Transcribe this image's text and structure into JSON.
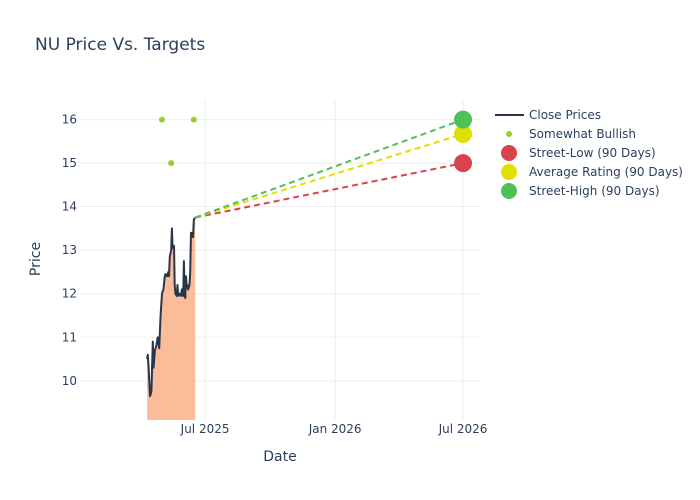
{
  "chart_data": {
    "type": "line",
    "title": "NU Price Vs. Targets",
    "xlabel": "Date",
    "ylabel": "Price",
    "x_type": "date",
    "xlim": [
      "2025-01-05",
      "2026-07-25"
    ],
    "ylim": [
      9.1,
      16.45
    ],
    "x_ticks": [
      {
        "date": "2025-07-01",
        "label": "Jul 2025"
      },
      {
        "date": "2026-01-01",
        "label": "Jan 2026"
      },
      {
        "date": "2026-07-01",
        "label": "Jul 2026"
      }
    ],
    "y_ticks": [
      10,
      11,
      12,
      13,
      14,
      15,
      16
    ],
    "grid": true,
    "legend_position": "right",
    "colors": {
      "close": "#2a3547",
      "area_fill": "#fbbc99",
      "bullish": "#9acd32",
      "low": "#d9434b",
      "average": "#e0e000",
      "high": "#4ec157",
      "grid": "#ebedf0"
    },
    "legend": [
      {
        "label": "Close Prices",
        "kind": "line",
        "color": "#2a3547"
      },
      {
        "label": "Somewhat Bullish",
        "kind": "small-dot",
        "color": "#9acd32"
      },
      {
        "label": "Street-Low (90 Days)",
        "kind": "dot",
        "color": "#d9434b"
      },
      {
        "label": "Average Rating (90 Days)",
        "kind": "dot",
        "color": "#e0e000"
      },
      {
        "label": "Street-High (90 Days)",
        "kind": "dot",
        "color": "#4ec157"
      }
    ],
    "close_prices": [
      [
        "2025-04-10",
        10.5
      ],
      [
        "2025-04-11",
        10.6
      ],
      [
        "2025-04-12",
        10.3
      ],
      [
        "2025-04-14",
        9.65
      ],
      [
        "2025-04-16",
        9.75
      ],
      [
        "2025-04-18",
        10.9
      ],
      [
        "2025-04-19",
        10.3
      ],
      [
        "2025-04-21",
        10.7
      ],
      [
        "2025-04-23",
        10.8
      ],
      [
        "2025-04-25",
        11.0
      ],
      [
        "2025-04-27",
        10.75
      ],
      [
        "2025-04-29",
        11.5
      ],
      [
        "2025-05-01",
        12.0
      ],
      [
        "2025-05-03",
        12.1
      ],
      [
        "2025-05-05",
        12.4
      ],
      [
        "2025-05-06",
        12.45
      ],
      [
        "2025-05-08",
        12.4
      ],
      [
        "2025-05-10",
        12.5
      ],
      [
        "2025-05-11",
        12.4
      ],
      [
        "2025-05-12",
        12.85
      ],
      [
        "2025-05-14",
        13.0
      ],
      [
        "2025-05-15",
        13.5
      ],
      [
        "2025-05-16",
        13.05
      ],
      [
        "2025-05-18",
        13.1
      ],
      [
        "2025-05-19",
        12.2
      ],
      [
        "2025-05-20",
        12.0
      ],
      [
        "2025-05-22",
        11.95
      ],
      [
        "2025-05-23",
        12.2
      ],
      [
        "2025-05-24",
        11.95
      ],
      [
        "2025-05-26",
        12.0
      ],
      [
        "2025-05-28",
        11.95
      ],
      [
        "2025-05-29",
        12.1
      ],
      [
        "2025-05-31",
        11.95
      ],
      [
        "2025-06-01",
        12.75
      ],
      [
        "2025-06-02",
        12.0
      ],
      [
        "2025-06-03",
        11.9
      ],
      [
        "2025-06-04",
        12.4
      ],
      [
        "2025-06-05",
        12.15
      ],
      [
        "2025-06-06",
        12.2
      ],
      [
        "2025-06-07",
        12.1
      ],
      [
        "2025-06-09",
        12.2
      ],
      [
        "2025-06-10",
        12.5
      ],
      [
        "2025-06-11",
        13.4
      ],
      [
        "2025-06-12",
        13.3
      ],
      [
        "2025-06-13",
        13.4
      ],
      [
        "2025-06-14",
        13.3
      ],
      [
        "2025-06-15",
        13.7
      ],
      [
        "2025-06-17",
        13.75
      ]
    ],
    "somewhat_bullish": [
      [
        "2025-05-01",
        16
      ],
      [
        "2025-05-14",
        15
      ],
      [
        "2025-06-15",
        16
      ]
    ],
    "targets": {
      "start": [
        "2025-06-17",
        13.75
      ],
      "target_date": "2026-07-01",
      "low": 15.0,
      "average": 15.67,
      "high": 16.0
    }
  }
}
